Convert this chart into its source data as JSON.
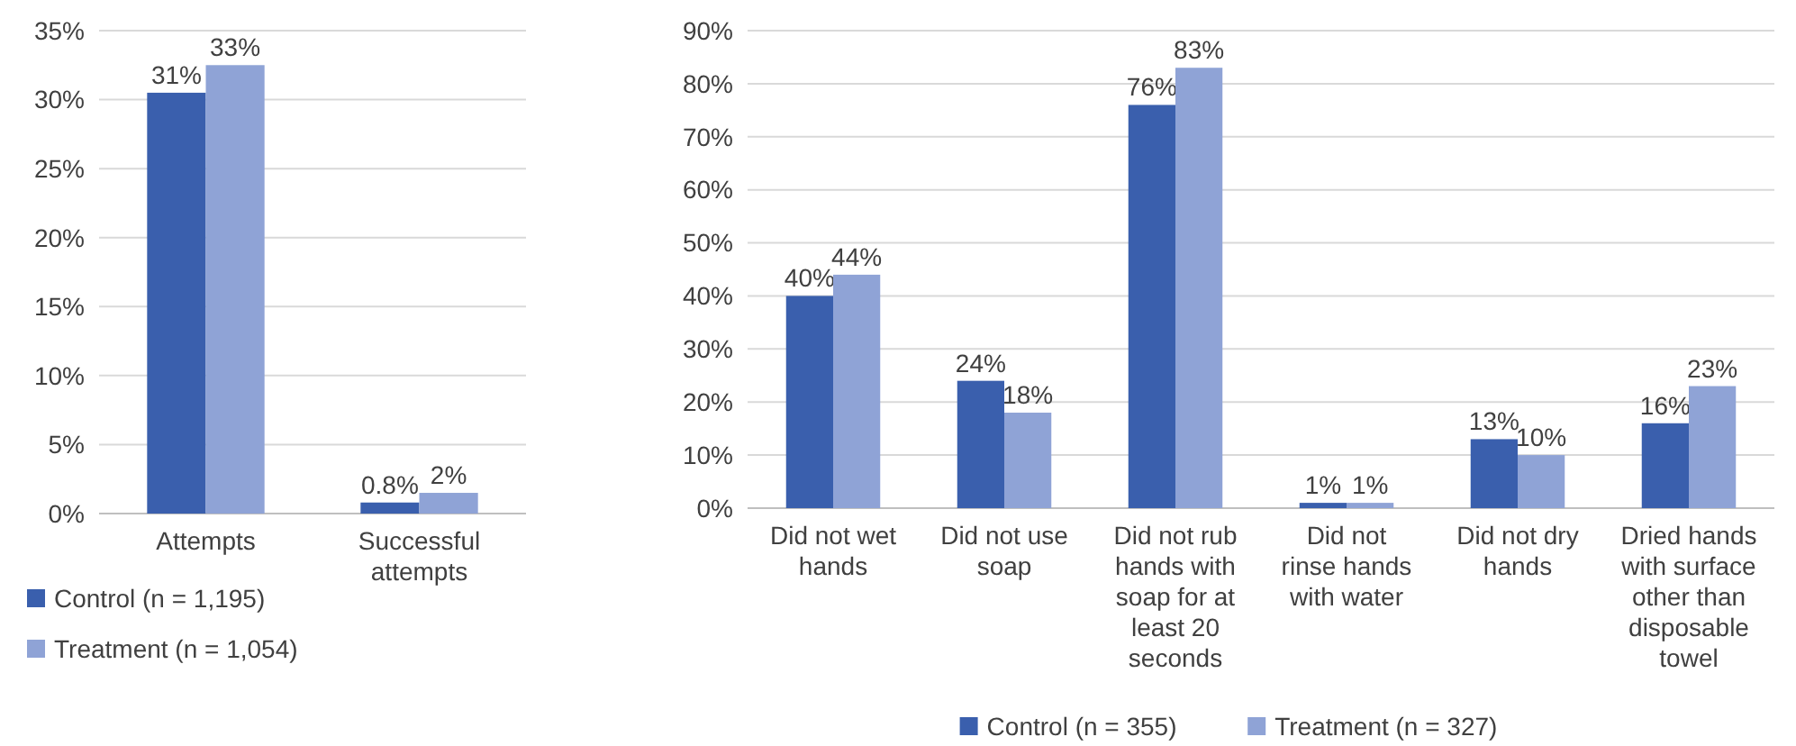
{
  "chart_data": [
    {
      "type": "bar",
      "categories": [
        "Attempts",
        "Successful attempts"
      ],
      "series": [
        {
          "name": "Control (n = 1,195)",
          "color": "#3a5fad",
          "values": [
            30.5,
            0.8
          ],
          "value_labels": [
            "31%",
            "0.8%"
          ]
        },
        {
          "name": "Treatment (n = 1,054)",
          "color": "#8fa3d6",
          "values": [
            32.5,
            1.5
          ],
          "value_labels": [
            "33%",
            "2%"
          ]
        }
      ],
      "ylim": [
        0,
        35
      ],
      "yticks": [
        {
          "value": 0,
          "label": "0%"
        },
        {
          "value": 5,
          "label": "5%"
        },
        {
          "value": 10,
          "label": "10%"
        },
        {
          "value": 15,
          "label": "15%"
        },
        {
          "value": 20,
          "label": "20%"
        },
        {
          "value": 25,
          "label": "25%"
        },
        {
          "value": 30,
          "label": "30%"
        },
        {
          "value": 35,
          "label": "35%"
        }
      ],
      "grid": "y",
      "legend": "bottom"
    },
    {
      "type": "bar",
      "categories": [
        "Did not wet hands",
        "Did not use soap",
        "Did not rub hands with soap for at least 20 seconds",
        "Did not rinse hands with water",
        "Did not dry hands",
        "Dried hands with surface other than disposable towel"
      ],
      "series": [
        {
          "name": "Control (n = 355)",
          "color": "#3a5fad",
          "values": [
            40,
            24,
            76,
            1,
            13,
            16
          ],
          "value_labels": [
            "40%",
            "24%",
            "76%",
            "1%",
            "13%",
            "16%"
          ]
        },
        {
          "name": "Treatment (n = 327)",
          "color": "#8fa3d6",
          "values": [
            44,
            18,
            83,
            1,
            10,
            23
          ],
          "value_labels": [
            "44%",
            "18%",
            "83%",
            "1%",
            "10%",
            "23%"
          ]
        }
      ],
      "ylim": [
        0,
        90
      ],
      "yticks": [
        {
          "value": 0,
          "label": "0%"
        },
        {
          "value": 10,
          "label": "10%"
        },
        {
          "value": 20,
          "label": "20%"
        },
        {
          "value": 30,
          "label": "30%"
        },
        {
          "value": 40,
          "label": "40%"
        },
        {
          "value": 50,
          "label": "50%"
        },
        {
          "value": 60,
          "label": "60%"
        },
        {
          "value": 70,
          "label": "70%"
        },
        {
          "value": 80,
          "label": "80%"
        },
        {
          "value": 90,
          "label": "90%"
        }
      ],
      "grid": "y",
      "legend": "bottom"
    }
  ]
}
